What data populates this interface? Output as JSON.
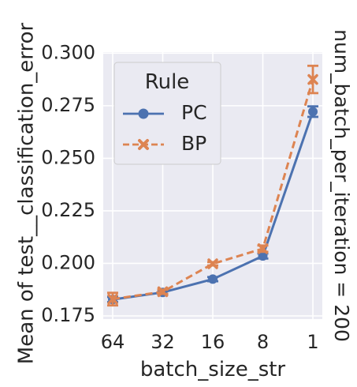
{
  "chart_data": {
    "type": "line",
    "xlabel": "batch_size_str",
    "ylabel": "Mean of test__classification_error",
    "facet_label": "num_batch_per_iteration = 200",
    "categories": [
      "64",
      "32",
      "16",
      "8",
      "1"
    ],
    "ylim": [
      0.1735,
      0.3005
    ],
    "yticks": [
      0.175,
      0.2,
      0.225,
      0.25,
      0.275,
      0.3
    ],
    "ytick_labels": [
      "0.175",
      "0.200",
      "0.225",
      "0.250",
      "0.275",
      "0.300"
    ],
    "grid": true,
    "legend": {
      "title": "Rule",
      "placement": "top-left"
    },
    "series": [
      {
        "name": "PC",
        "color": "#4c72b0",
        "marker": "circle",
        "linestyle": "solid",
        "values": [
          0.1828,
          0.1862,
          0.1925,
          0.2035,
          0.2722
        ],
        "errors": [
          0.0012,
          0.001,
          0.001,
          0.0012,
          0.0025
        ]
      },
      {
        "name": "BP",
        "color": "#dd8452",
        "marker": "x",
        "linestyle": "dashed",
        "values": [
          0.183,
          0.1865,
          0.1998,
          0.207,
          0.2875
        ],
        "errors": [
          0.003,
          0.001,
          0.0008,
          0.0015,
          0.0065
        ]
      }
    ]
  }
}
